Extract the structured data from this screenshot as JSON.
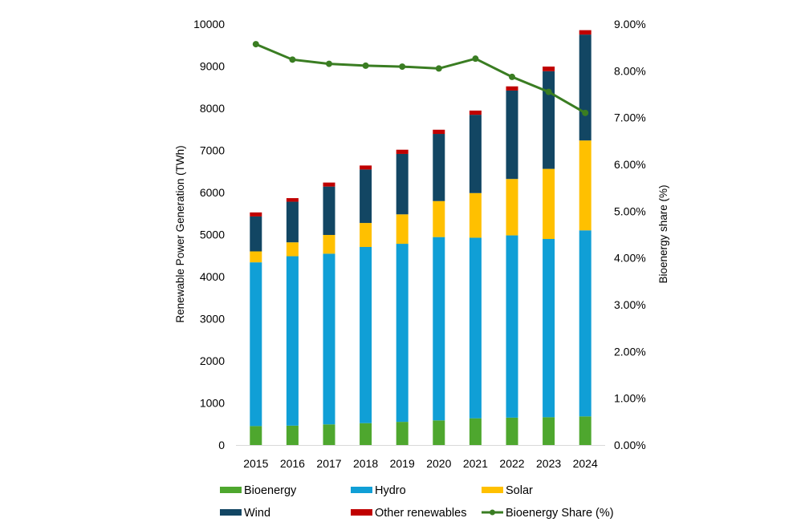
{
  "chart_data": {
    "type": "bar",
    "stacked": true,
    "title": "",
    "categories": [
      "2015",
      "2016",
      "2017",
      "2018",
      "2019",
      "2020",
      "2021",
      "2022",
      "2023",
      "2024"
    ],
    "xlabel": "",
    "ylabel": "Renewable Power Generation (TWh)",
    "ylim": [
      0,
      10000
    ],
    "yticks": [
      "0",
      "1000",
      "2000",
      "3000",
      "4000",
      "5000",
      "6000",
      "7000",
      "8000",
      "9000",
      "10000"
    ],
    "y2label": "Bioenergy share (%)",
    "y2lim": [
      0,
      9
    ],
    "y2ticks": [
      "0.00%",
      "1.00%",
      "2.00%",
      "3.00%",
      "4.00%",
      "5.00%",
      "6.00%",
      "7.00%",
      "8.00%",
      "9.00%"
    ],
    "grid": false,
    "legend_position": "bottom",
    "series": [
      {
        "name": "Bioenergy",
        "type": "bar",
        "color": "#4EA72E",
        "values": [
          450,
          460,
          490,
          520,
          550,
          585,
          635,
          650,
          660,
          680
        ]
      },
      {
        "name": "Hydro",
        "type": "bar",
        "color": "#109FD6",
        "values": [
          3890,
          4025,
          4055,
          4185,
          4230,
          4355,
          4290,
          4330,
          4235,
          4420
        ]
      },
      {
        "name": "Solar",
        "type": "bar",
        "color": "#FFC000",
        "values": [
          260,
          330,
          445,
          570,
          700,
          855,
          1060,
          1340,
          1665,
          2135
        ]
      },
      {
        "name": "Wind",
        "type": "bar",
        "color": "#124663",
        "values": [
          830,
          965,
          1150,
          1270,
          1435,
          1595,
          1860,
          2100,
          2320,
          2515
        ]
      },
      {
        "name": "Other renewables",
        "type": "bar",
        "color": "#C00000",
        "values": [
          95,
          85,
          95,
          95,
          100,
          100,
          100,
          100,
          110,
          105
        ]
      },
      {
        "name": "Bioenergy Share (%)",
        "type": "line",
        "axis": "right",
        "color": "#3A7D22",
        "values": [
          8.57,
          8.24,
          8.15,
          8.11,
          8.09,
          8.05,
          8.26,
          7.87,
          7.55,
          7.1
        ]
      }
    ]
  }
}
